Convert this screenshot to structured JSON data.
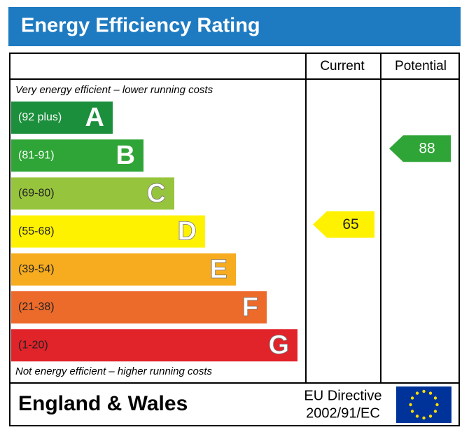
{
  "title": "Energy Efficiency Rating",
  "columns": [
    "Current",
    "Potential"
  ],
  "top_note": "Very energy efficient – lower running costs",
  "bottom_note": "Not energy efficient – higher running costs",
  "bands": [
    {
      "range": "(92 plus)",
      "letter": "A",
      "color": "#1b8f3c"
    },
    {
      "range": "(81-91)",
      "letter": "B",
      "color": "#2fa537"
    },
    {
      "range": "(69-80)",
      "letter": "C",
      "color": "#97c43d"
    },
    {
      "range": "(55-68)",
      "letter": "D",
      "color": "#fff200"
    },
    {
      "range": "(39-54)",
      "letter": "E",
      "color": "#f7ab1f"
    },
    {
      "range": "(21-38)",
      "letter": "F",
      "color": "#ec6a2a"
    },
    {
      "range": "(1-20)",
      "letter": "G",
      "color": "#e1232a"
    }
  ],
  "current": {
    "value": 65,
    "color": "#fff200"
  },
  "potential": {
    "value": 88,
    "color": "#2fa537"
  },
  "footer": {
    "region": "England & Wales",
    "directive_line1": "EU Directive",
    "directive_line2": "2002/91/EC"
  }
}
